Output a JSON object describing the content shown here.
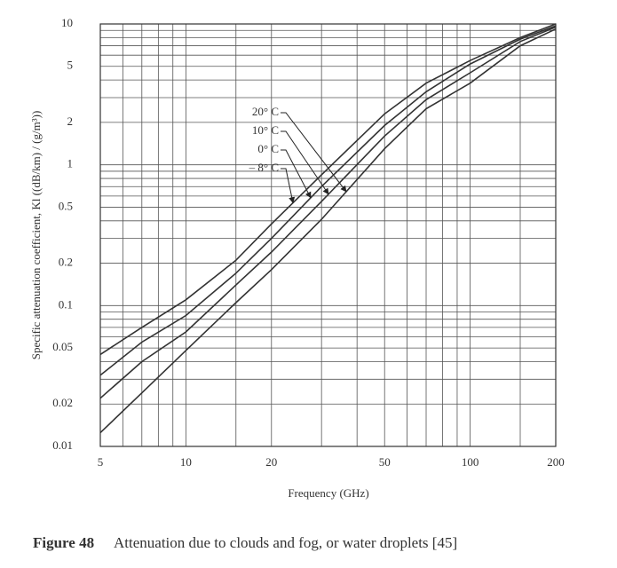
{
  "chart_data": {
    "type": "line",
    "caption_label": "Figure 48",
    "caption": "Attenuation due to clouds and fog, or water droplets [45]",
    "x_label": "Frequency (GHz)",
    "y_label": "Specific attenuation coefficient, Kl ((dB/km) / (g/m³))",
    "x": [
      5,
      7,
      10,
      15,
      20,
      30,
      50,
      70,
      100,
      150,
      200
    ],
    "series": [
      {
        "name": "20° C",
        "values": [
          0.0125,
          0.024,
          0.048,
          0.105,
          0.18,
          0.41,
          1.3,
          2.5,
          3.8,
          7.0,
          9.2
        ]
      },
      {
        "name": "10° C",
        "values": [
          0.022,
          0.04,
          0.065,
          0.14,
          0.24,
          0.55,
          1.6,
          2.9,
          4.5,
          7.5,
          9.5
        ]
      },
      {
        "name": "0° C",
        "values": [
          0.032,
          0.055,
          0.085,
          0.17,
          0.3,
          0.7,
          1.9,
          3.3,
          5.2,
          7.8,
          9.7
        ]
      },
      {
        "name": "– 8° C",
        "values": [
          0.045,
          0.07,
          0.11,
          0.21,
          0.38,
          0.85,
          2.3,
          3.8,
          5.5,
          8.0,
          10
        ]
      }
    ],
    "color": "#333333",
    "xscale": "log",
    "yscale": "log",
    "xlim": [
      5,
      200
    ],
    "ylim": [
      0.01,
      10
    ],
    "xticks": [
      5,
      10,
      20,
      50,
      100,
      200
    ],
    "yticks": [
      0.01,
      0.02,
      0.05,
      0.1,
      0.2,
      0.5,
      1,
      2,
      5,
      10
    ],
    "xminor": [
      6,
      7,
      8,
      9,
      15,
      30,
      40,
      60,
      70,
      80,
      90,
      150
    ],
    "yminor": [
      0.03,
      0.04,
      0.06,
      0.07,
      0.08,
      0.09,
      0.3,
      0.4,
      0.6,
      0.7,
      0.8,
      0.9,
      3,
      4,
      6,
      7,
      8,
      9
    ],
    "grid": true
  }
}
